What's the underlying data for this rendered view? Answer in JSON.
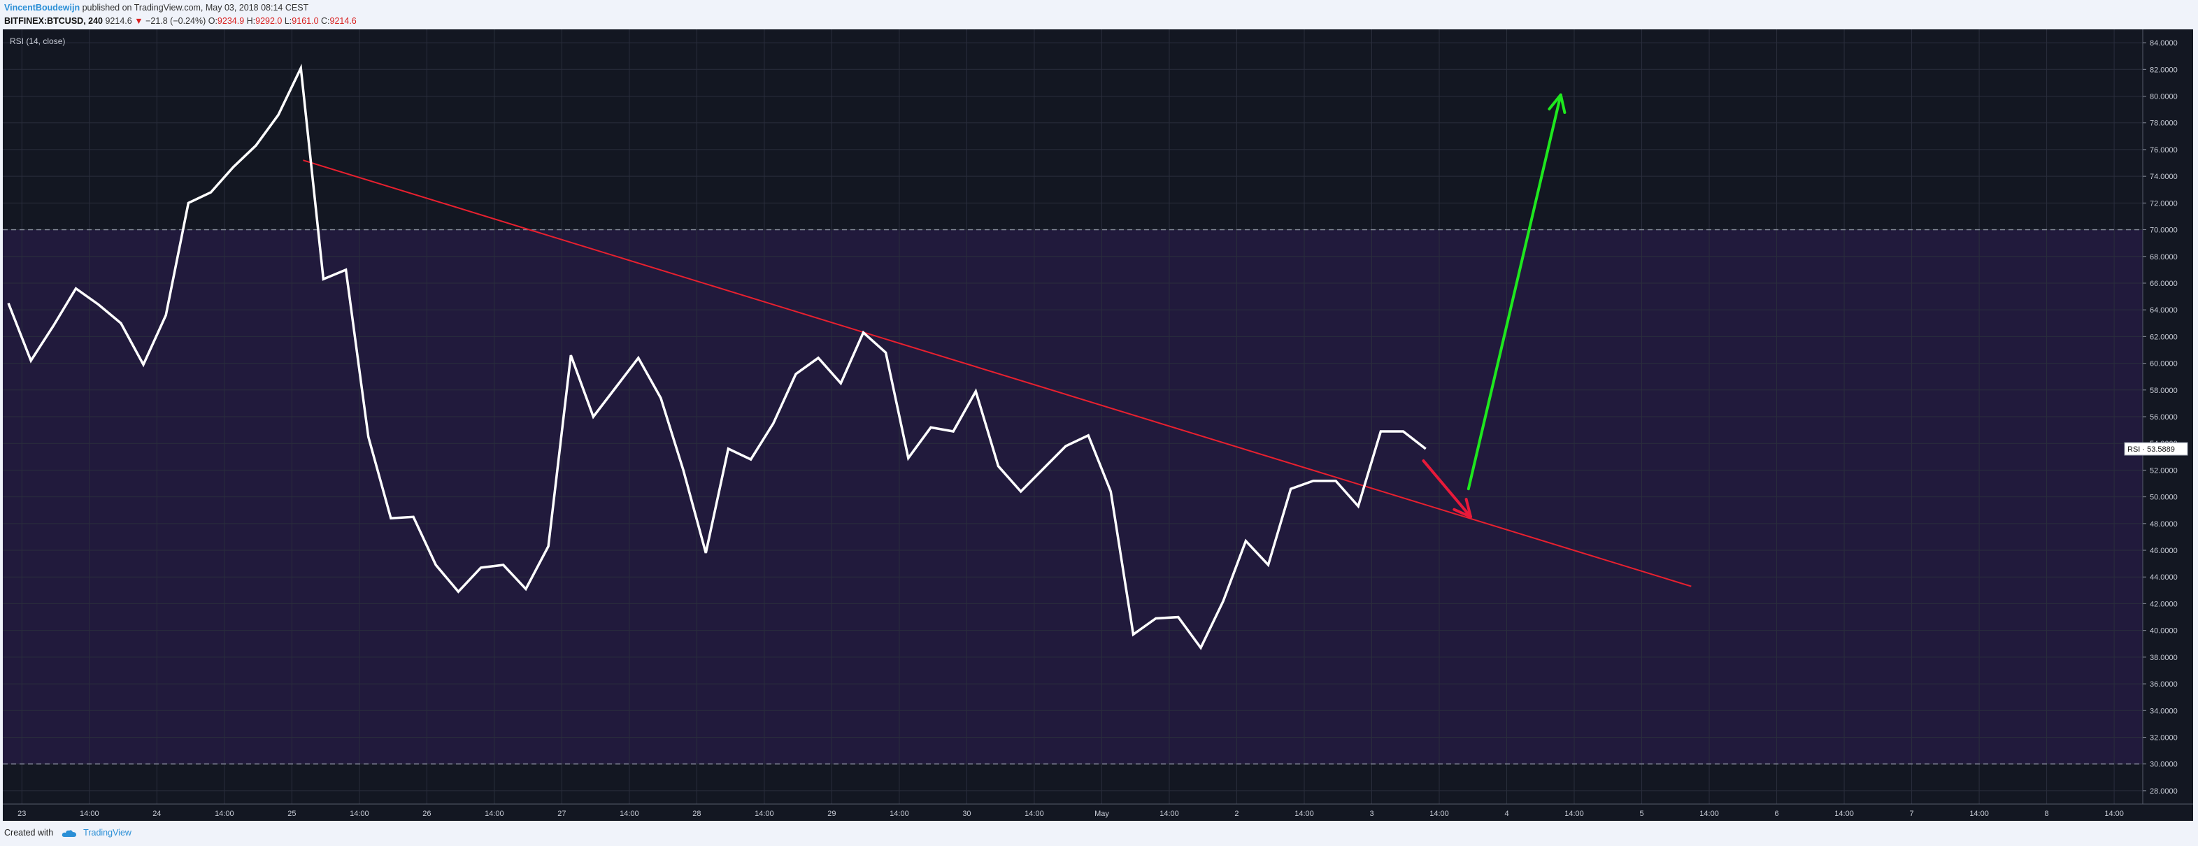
{
  "header": {
    "author": "VincentBoudewijn",
    "published": "published on TradingView.com, May 03, 2018 08:14 CEST",
    "symbol": "BITFINEX:BTCUSD, 240",
    "last": "9214.6",
    "change": "−21.8 (−0.24%)",
    "open_label": "O:",
    "open": "9234.9",
    "high_label": "H:",
    "high": "9292.0",
    "low_label": "L:",
    "low": "9161.0",
    "close_label": "C:",
    "close": "9214.6"
  },
  "footer": {
    "created_with": "Created with",
    "brand": "TradingView"
  },
  "colors": {
    "chart_bg": "#131722",
    "band_fill": "#211a3c",
    "rsi_line": "#ffffff",
    "trendline": "#e8202f",
    "arrow_down": "#e81a3a",
    "arrow_up": "#1ee81e",
    "header_red": "#d92121",
    "brand_blue": "#2b8fd6"
  },
  "chart_data": {
    "type": "line",
    "indicator_label": "RSI (14, close)",
    "ylim": [
      27,
      85
    ],
    "y_ticks": [
      "84.0000",
      "82.0000",
      "80.0000",
      "78.0000",
      "76.0000",
      "74.0000",
      "72.0000",
      "70.0000",
      "68.0000",
      "66.0000",
      "64.0000",
      "62.0000",
      "60.0000",
      "58.0000",
      "56.0000",
      "54.0000",
      "52.0000",
      "50.0000",
      "48.0000",
      "46.0000",
      "44.0000",
      "42.0000",
      "40.0000",
      "38.0000",
      "36.0000",
      "34.0000",
      "32.0000",
      "30.0000",
      "28.0000"
    ],
    "x_ticks": [
      {
        "t": 0.6,
        "label": "23"
      },
      {
        "t": 3.6,
        "label": "14:00"
      },
      {
        "t": 6.6,
        "label": "24"
      },
      {
        "t": 9.6,
        "label": "14:00"
      },
      {
        "t": 12.6,
        "label": "25"
      },
      {
        "t": 15.6,
        "label": "14:00"
      },
      {
        "t": 18.6,
        "label": "26"
      },
      {
        "t": 21.6,
        "label": "14:00"
      },
      {
        "t": 24.6,
        "label": "27"
      },
      {
        "t": 27.6,
        "label": "14:00"
      },
      {
        "t": 30.6,
        "label": "28"
      },
      {
        "t": 33.6,
        "label": "14:00"
      },
      {
        "t": 36.6,
        "label": "29"
      },
      {
        "t": 39.6,
        "label": "14:00"
      },
      {
        "t": 42.6,
        "label": "30"
      },
      {
        "t": 45.6,
        "label": "14:00"
      },
      {
        "t": 48.6,
        "label": "May"
      },
      {
        "t": 51.6,
        "label": "14:00"
      },
      {
        "t": 54.6,
        "label": "2"
      },
      {
        "t": 57.6,
        "label": "14:00"
      },
      {
        "t": 60.6,
        "label": "3"
      },
      {
        "t": 63.6,
        "label": "14:00"
      },
      {
        "t": 66.6,
        "label": "4"
      },
      {
        "t": 69.6,
        "label": "14:00"
      },
      {
        "t": 72.6,
        "label": "5"
      },
      {
        "t": 75.6,
        "label": "14:00"
      },
      {
        "t": 78.6,
        "label": "6"
      },
      {
        "t": 81.6,
        "label": "14:00"
      },
      {
        "t": 84.6,
        "label": "7"
      },
      {
        "t": 87.6,
        "label": "14:00"
      },
      {
        "t": 90.6,
        "label": "8"
      },
      {
        "t": 93.6,
        "label": "14:00"
      }
    ],
    "bands": {
      "upper": 70,
      "lower": 30
    },
    "series": [
      {
        "values": [
          64.5,
          60.2,
          62.8,
          65.6,
          64.4,
          63.0,
          59.9,
          63.6,
          72.0,
          72.8,
          74.7,
          76.3,
          78.6,
          82.1,
          66.3,
          67.0,
          54.5,
          48.4,
          48.5,
          44.9,
          42.9,
          44.7,
          44.9,
          43.1,
          46.3,
          60.6,
          56.0,
          58.2,
          60.4,
          57.4,
          52.0,
          45.8,
          53.6,
          52.8,
          55.5,
          59.2,
          60.4,
          58.5,
          62.3,
          60.8,
          52.9,
          55.2,
          54.9,
          57.9,
          52.3,
          50.4,
          52.1,
          53.8,
          54.6,
          50.4,
          39.7,
          40.9,
          41.0,
          38.7,
          42.2,
          46.7,
          44.9,
          50.6,
          51.2,
          51.2,
          49.3,
          54.9,
          54.9,
          53.59
        ]
      }
    ],
    "trendline": {
      "from": [
        13.1,
        75.2
      ],
      "to": [
        74.8,
        43.3
      ]
    },
    "arrows": [
      {
        "from": [
          62.9,
          52.7
        ],
        "to": [
          65.0,
          48.5
        ]
      },
      {
        "from": [
          64.9,
          50.6
        ],
        "to": [
          69.0,
          80.1
        ]
      }
    ],
    "last_value": {
      "label": "RSI",
      "value": "53.5889",
      "y": 53.59
    }
  }
}
